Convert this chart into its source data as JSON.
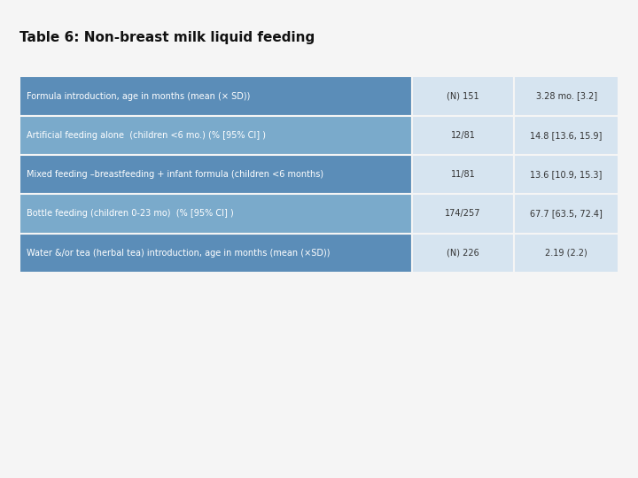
{
  "title": "Table 6: Non-breast milk liquid feeding",
  "title_fontsize": 11,
  "title_fontweight": "bold",
  "background_color": "#f5f5f5",
  "row_blue_dark": "#5b8db8",
  "row_blue_light": "#7aaacb",
  "col23_bg": "#d6e4f0",
  "text_white": "#ffffff",
  "text_dark": "#333333",
  "rows": [
    {
      "label": "Formula introduction, age in months (mean (× SD))",
      "col2": "(N) 151",
      "col3": "3.28 mo. [3.2]",
      "dark": true
    },
    {
      "label": "Artificial feeding alone  (children <6 mo.) (% [95% CI] )",
      "col2": "12/81",
      "col3": "14.8 [13.6, 15.9]",
      "dark": false
    },
    {
      "label": "Mixed feeding –breastfeeding + infant formula (children <6 months)",
      "col2": "11/81",
      "col3": "13.6 [10.9, 15.3]",
      "dark": true
    },
    {
      "label": "Bottle feeding (children 0-23 mo)  (% [95% CI] )",
      "col2": "174/257",
      "col3": "67.7 [63.5, 72.4]",
      "dark": false
    },
    {
      "label": "Water &/or tea (herbal tea) introduction, age in months (mean (×SD))",
      "col2": "(N) 226",
      "col3": "2.19 (2.2)",
      "dark": true
    }
  ],
  "font_size": 7.0
}
